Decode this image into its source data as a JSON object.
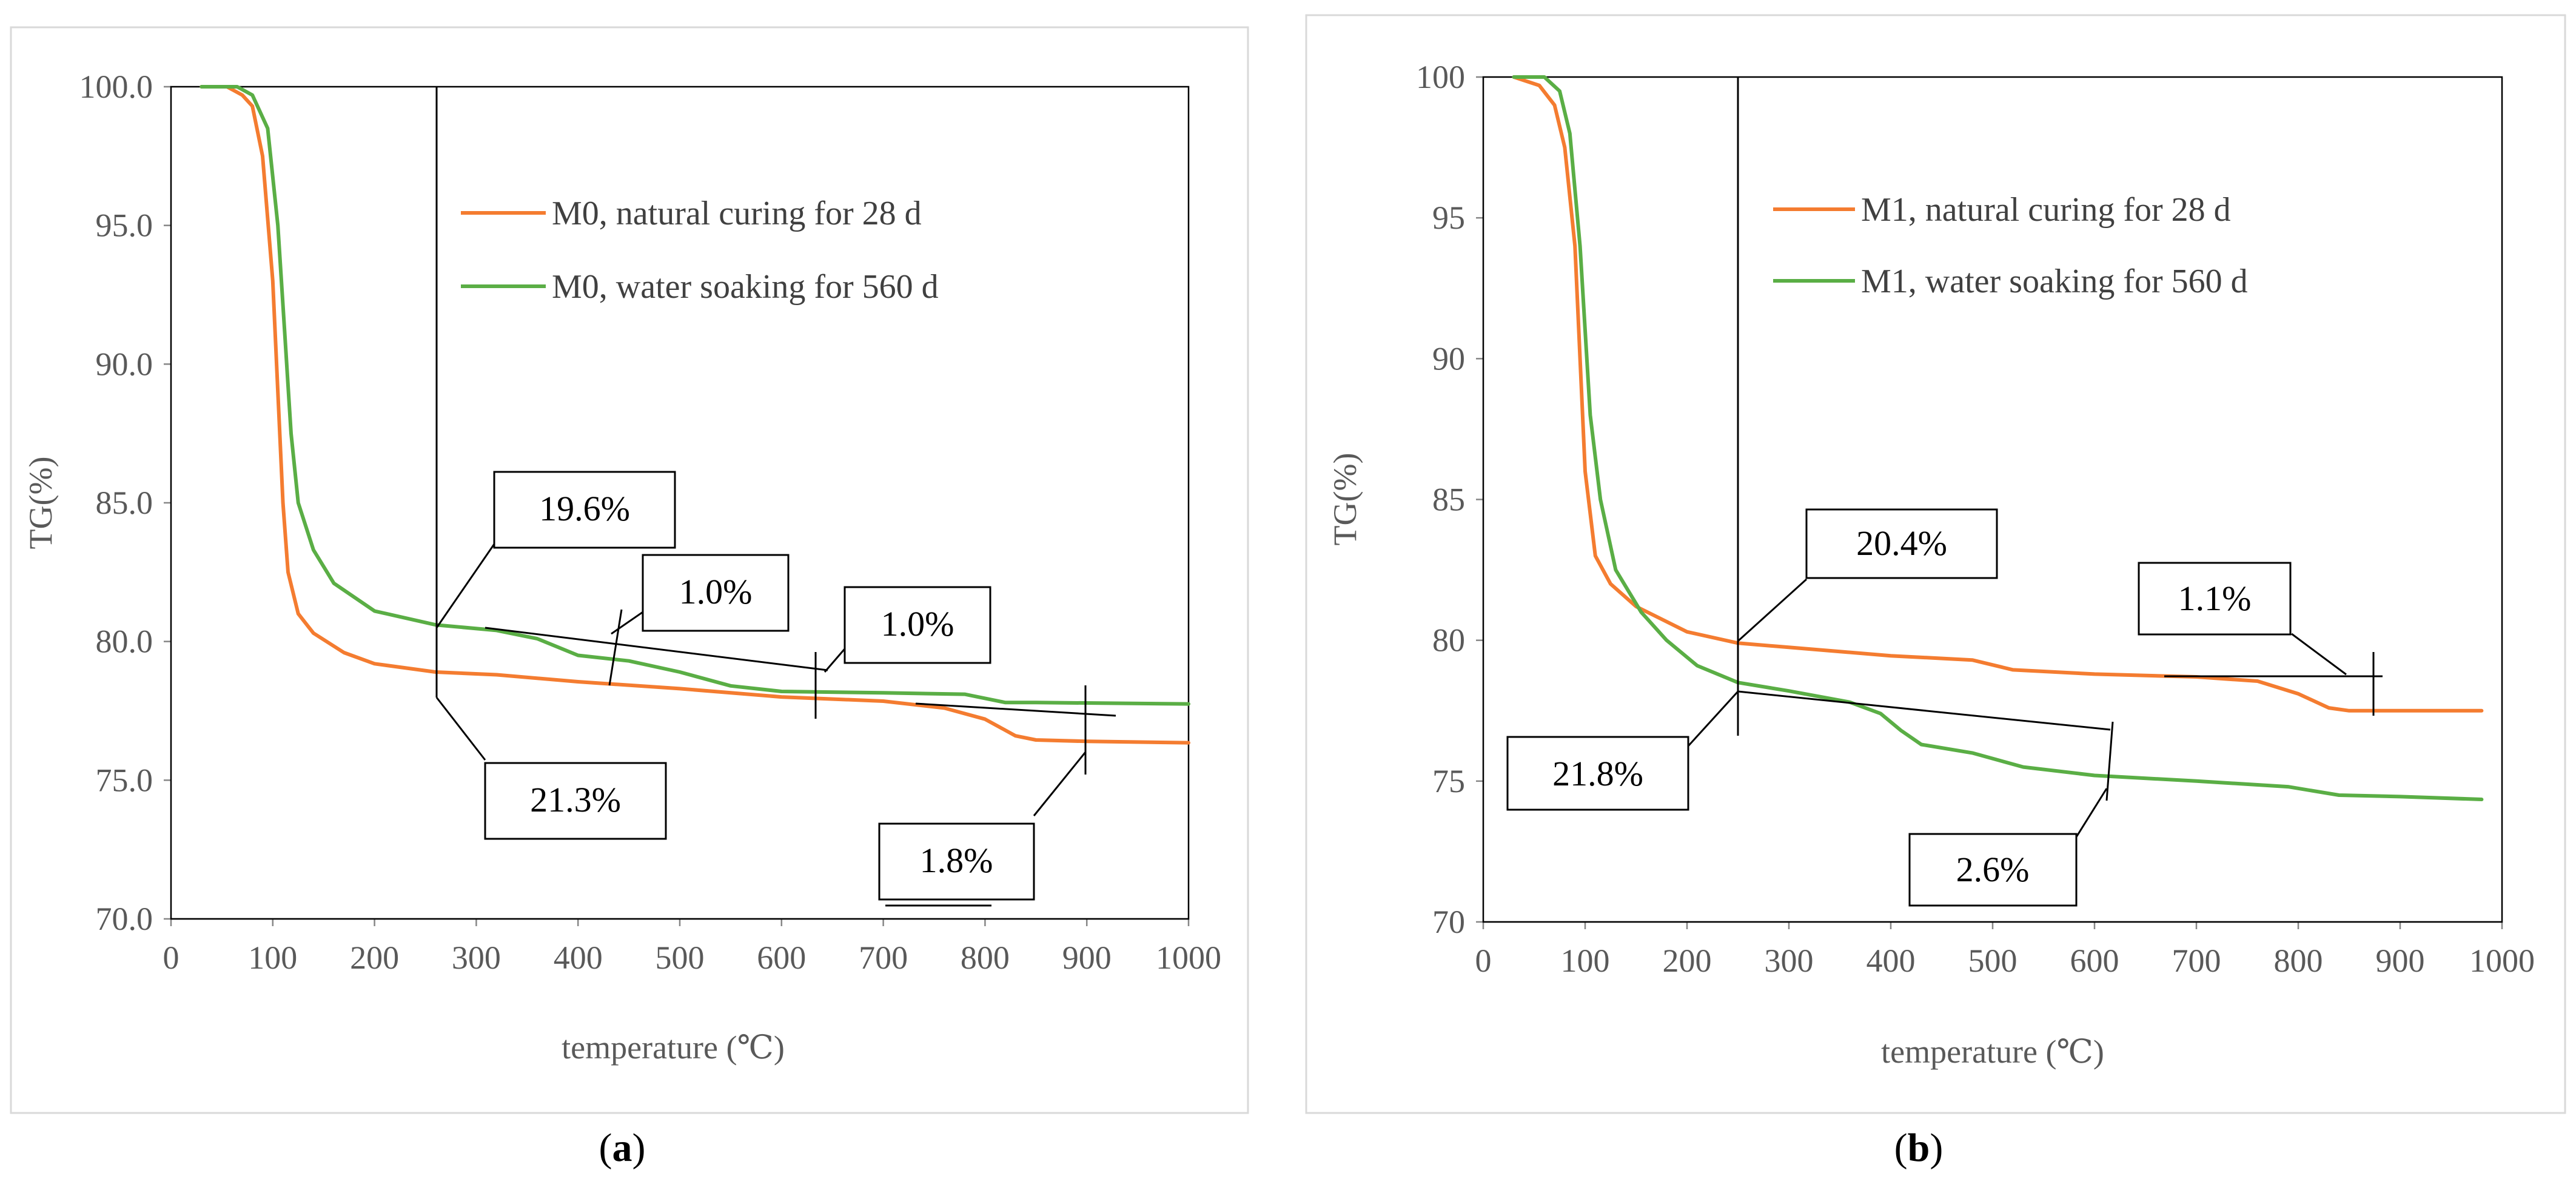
{
  "colors": {
    "natural": "#f47c30",
    "water": "#5aae45"
  },
  "chart_data": [
    {
      "id": "a",
      "type": "line",
      "caption_letter": "a",
      "xlabel": "temperature (℃)",
      "ylabel": "TG(%)",
      "xlim": [
        0,
        1000
      ],
      "ylim": [
        70,
        100
      ],
      "x_ticks": [
        0,
        100,
        200,
        300,
        400,
        500,
        600,
        700,
        800,
        900,
        1000
      ],
      "y_ticks": [
        70,
        75,
        80,
        85,
        90,
        95,
        100
      ],
      "y_tick_labels": [
        "70.0",
        "75.0",
        "80.0",
        "85.0",
        "90.0",
        "95.0",
        "100.0"
      ],
      "series": [
        {
          "name": "M0,   natural curing for 28 d",
          "color_key": "natural",
          "points": [
            [
              30,
              100
            ],
            [
              55,
              100
            ],
            [
              70,
              99.7
            ],
            [
              80,
              99.3
            ],
            [
              90,
              97.5
            ],
            [
              100,
              93
            ],
            [
              105,
              89
            ],
            [
              110,
              85
            ],
            [
              115,
              82.5
            ],
            [
              125,
              81
            ],
            [
              140,
              80.3
            ],
            [
              170,
              79.6
            ],
            [
              200,
              79.2
            ],
            [
              260,
              78.9
            ],
            [
              320,
              78.8
            ],
            [
              400,
              78.55
            ],
            [
              500,
              78.3
            ],
            [
              600,
              78.0
            ],
            [
              700,
              77.85
            ],
            [
              760,
              77.6
            ],
            [
              800,
              77.2
            ],
            [
              830,
              76.6
            ],
            [
              850,
              76.45
            ],
            [
              900,
              76.4
            ],
            [
              1000,
              76.35
            ]
          ]
        },
        {
          "name": "M0, water soaking for 560 d",
          "color_key": "water",
          "points": [
            [
              30,
              100
            ],
            [
              65,
              100
            ],
            [
              80,
              99.7
            ],
            [
              95,
              98.5
            ],
            [
              105,
              95
            ],
            [
              112,
              91
            ],
            [
              118,
              87.5
            ],
            [
              125,
              85
            ],
            [
              140,
              83.3
            ],
            [
              160,
              82.1
            ],
            [
              200,
              81.1
            ],
            [
              260,
              80.6
            ],
            [
              320,
              80.4
            ],
            [
              360,
              80.1
            ],
            [
              400,
              79.5
            ],
            [
              450,
              79.3
            ],
            [
              500,
              78.9
            ],
            [
              550,
              78.4
            ],
            [
              600,
              78.2
            ],
            [
              700,
              78.15
            ],
            [
              780,
              78.1
            ],
            [
              820,
              77.8
            ],
            [
              850,
              77.8
            ],
            [
              1000,
              77.75
            ]
          ]
        }
      ],
      "annotations": [
        "19.6%",
        "1.0%",
        "1.0%",
        "21.3%",
        "1.8%"
      ],
      "guide_x": 260
    },
    {
      "id": "b",
      "type": "line",
      "caption_letter": "b",
      "xlabel": "temperature (℃)",
      "ylabel": "TG(%)",
      "xlim": [
        0,
        1000
      ],
      "ylim": [
        70,
        100
      ],
      "x_ticks": [
        0,
        100,
        200,
        300,
        400,
        500,
        600,
        700,
        800,
        900,
        1000
      ],
      "y_ticks": [
        70,
        75,
        80,
        85,
        90,
        95,
        100
      ],
      "y_tick_labels": [
        "70",
        "75",
        "80",
        "85",
        "90",
        "95",
        "100"
      ],
      "series": [
        {
          "name": "M1,  natural curing for 28 d",
          "color_key": "natural",
          "points": [
            [
              30,
              100
            ],
            [
              55,
              99.7
            ],
            [
              70,
              99.0
            ],
            [
              80,
              97.5
            ],
            [
              90,
              94
            ],
            [
              95,
              90
            ],
            [
              100,
              86
            ],
            [
              110,
              83
            ],
            [
              125,
              82
            ],
            [
              150,
              81.2
            ],
            [
              200,
              80.3
            ],
            [
              250,
              79.9
            ],
            [
              300,
              79.75
            ],
            [
              350,
              79.6
            ],
            [
              400,
              79.45
            ],
            [
              480,
              79.3
            ],
            [
              520,
              78.95
            ],
            [
              600,
              78.8
            ],
            [
              700,
              78.7
            ],
            [
              760,
              78.55
            ],
            [
              800,
              78.1
            ],
            [
              830,
              77.6
            ],
            [
              850,
              77.5
            ],
            [
              980,
              77.5
            ]
          ]
        },
        {
          "name": "M1, water soaking for 560 d",
          "color_key": "water",
          "points": [
            [
              30,
              100
            ],
            [
              60,
              100
            ],
            [
              75,
              99.5
            ],
            [
              85,
              98
            ],
            [
              95,
              94
            ],
            [
              100,
              91
            ],
            [
              105,
              88
            ],
            [
              115,
              85
            ],
            [
              130,
              82.5
            ],
            [
              155,
              81
            ],
            [
              180,
              80
            ],
            [
              210,
              79.1
            ],
            [
              250,
              78.5
            ],
            [
              300,
              78.2
            ],
            [
              360,
              77.8
            ],
            [
              390,
              77.4
            ],
            [
              410,
              76.8
            ],
            [
              430,
              76.3
            ],
            [
              480,
              76.0
            ],
            [
              530,
              75.5
            ],
            [
              600,
              75.2
            ],
            [
              700,
              75.0
            ],
            [
              790,
              74.8
            ],
            [
              840,
              74.5
            ],
            [
              900,
              74.45
            ],
            [
              980,
              74.35
            ]
          ]
        }
      ],
      "annotations": [
        "20.4%",
        "1.1%",
        "21.8%",
        "2.6%"
      ],
      "guide_x": 250
    }
  ]
}
